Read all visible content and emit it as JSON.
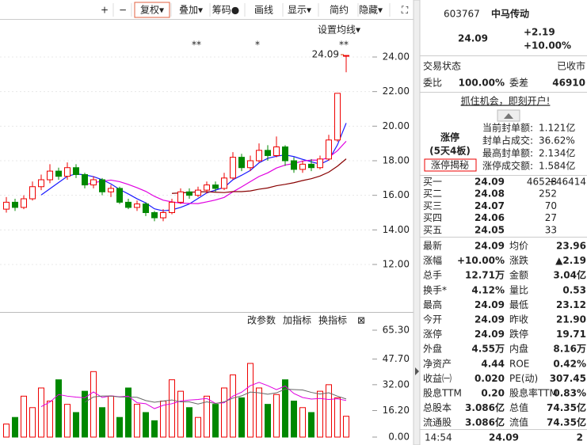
{
  "toolbar": [
    "+",
    "−",
    "复权▾",
    "叠加▾",
    "筹码●",
    "画线",
    "显示▾",
    "简约",
    "隐藏▾",
    "⛶"
  ],
  "chart": {
    "settings_label": "设置均线▾",
    "last_label": "24.09",
    "markers": [
      "**",
      "*",
      "**"
    ],
    "ylim": [
      12,
      24
    ],
    "yticks": [
      {
        "value": 24,
        "label": "24.00"
      },
      {
        "value": 22,
        "label": "22.00"
      },
      {
        "value": 20,
        "label": "20.00"
      },
      {
        "value": 18,
        "label": "18.00"
      },
      {
        "value": 16,
        "label": "16.00"
      },
      {
        "value": 14,
        "label": "14.00"
      },
      {
        "value": 12,
        "label": "12.00"
      }
    ],
    "candles": [
      [
        15.2,
        15.9,
        15.0,
        15.6
      ],
      [
        15.6,
        15.8,
        15.1,
        15.3
      ],
      [
        15.3,
        16.0,
        15.2,
        15.8
      ],
      [
        15.8,
        16.8,
        15.7,
        16.5
      ],
      [
        16.5,
        17.2,
        16.3,
        16.9
      ],
      [
        16.9,
        17.8,
        16.7,
        17.4
      ],
      [
        17.4,
        17.6,
        16.9,
        17.1
      ],
      [
        17.1,
        17.9,
        16.9,
        17.6
      ],
      [
        17.6,
        17.8,
        17.0,
        17.2
      ],
      [
        17.2,
        17.3,
        16.4,
        16.6
      ],
      [
        16.6,
        17.1,
        16.4,
        16.9
      ],
      [
        16.9,
        17.0,
        16.0,
        16.2
      ],
      [
        16.2,
        16.6,
        15.9,
        16.4
      ],
      [
        16.4,
        16.5,
        15.5,
        15.6
      ],
      [
        15.6,
        15.8,
        15.2,
        15.3
      ],
      [
        15.3,
        15.7,
        15.1,
        15.5
      ],
      [
        15.5,
        15.6,
        14.8,
        15.0
      ],
      [
        15.0,
        15.1,
        14.5,
        14.7
      ],
      [
        14.7,
        15.2,
        14.5,
        15.0
      ],
      [
        15.0,
        15.8,
        14.9,
        15.6
      ],
      [
        15.6,
        16.4,
        15.5,
        16.2
      ],
      [
        16.2,
        16.4,
        15.8,
        16.0
      ],
      [
        16.0,
        16.5,
        15.9,
        16.3
      ],
      [
        16.3,
        16.8,
        16.1,
        16.6
      ],
      [
        16.6,
        16.8,
        16.2,
        16.4
      ],
      [
        16.4,
        17.3,
        16.3,
        17.0
      ],
      [
        17.0,
        18.5,
        16.9,
        18.2
      ],
      [
        18.2,
        18.4,
        17.4,
        17.6
      ],
      [
        17.6,
        18.3,
        17.4,
        18.0
      ],
      [
        18.0,
        19.0,
        17.9,
        18.6
      ],
      [
        18.6,
        18.9,
        18.0,
        18.3
      ],
      [
        18.3,
        19.4,
        18.2,
        18.8
      ],
      [
        18.8,
        18.9,
        17.7,
        18.0
      ],
      [
        18.0,
        18.2,
        17.3,
        17.5
      ],
      [
        17.5,
        18.0,
        17.3,
        17.8
      ],
      [
        17.8,
        18.1,
        17.4,
        17.6
      ],
      [
        17.6,
        18.3,
        17.5,
        18.1
      ],
      [
        18.1,
        19.5,
        18.0,
        19.2
      ],
      [
        19.2,
        21.9,
        19.1,
        21.9
      ],
      [
        24.09,
        24.09,
        23.12,
        24.09
      ]
    ],
    "volume_header": [
      "改参数",
      "加指标",
      "换指标",
      "⊠"
    ],
    "vlim": [
      0,
      65.3
    ],
    "vticks": [
      {
        "value": 65.3,
        "label": "65.30"
      },
      {
        "value": 47.7,
        "label": "47.70"
      },
      {
        "value": 32,
        "label": "32.00"
      },
      {
        "value": 16.2,
        "label": "16.20"
      },
      {
        "value": 0,
        "label": "0.00"
      }
    ],
    "volumes": [
      8,
      12,
      25,
      18,
      30,
      22,
      35,
      20,
      15,
      28,
      40,
      18,
      25,
      12,
      30,
      20,
      15,
      10,
      22,
      35,
      28,
      18,
      12,
      25,
      20,
      30,
      38,
      24,
      45,
      30,
      20,
      26,
      35,
      22,
      18,
      15,
      28,
      32,
      24,
      12.71
    ]
  },
  "quote": {
    "code": "603767",
    "name": "中马传动",
    "price": "24.09",
    "change": "+2.19",
    "pct": "+10.00%",
    "status_label": "交易状态",
    "status": "已收市",
    "ratio_label": "委比",
    "ratio": "100.00%",
    "diff_label": "委差",
    "diff": "46910",
    "link": "抓住机会，即刻开户!",
    "limit": {
      "title": "涨停",
      "streak": "(5天4板)",
      "button": "涨停揭秘",
      "rows": [
        [
          "当前封单额:",
          "1.121亿"
        ],
        [
          "封单占成交:",
          "36.62%"
        ],
        [
          "最高封单额:",
          "2.134亿"
        ],
        [
          "涨停成交额:",
          "1.584亿"
        ]
      ]
    },
    "bids": [
      [
        "买一",
        "24.09",
        "46528",
        "+46414"
      ],
      [
        "买二",
        "24.08",
        "252"
      ],
      [
        "买三",
        "24.07",
        "70"
      ],
      [
        "买四",
        "24.06",
        "27"
      ],
      [
        "买五",
        "24.05",
        "33"
      ]
    ],
    "stats": [
      [
        [
          "最新",
          "24.09",
          "red"
        ],
        [
          "均价",
          "23.96",
          "black"
        ]
      ],
      [
        [
          "涨幅",
          "+10.00%",
          "red"
        ],
        [
          "涨跌",
          "▲2.19",
          "red"
        ]
      ],
      [
        [
          "总手",
          "12.71万",
          "black"
        ],
        [
          "金额",
          "3.04亿",
          "blue"
        ]
      ],
      [
        [
          "换手*",
          "4.12%",
          "black"
        ],
        [
          "量比",
          "0.53",
          "green"
        ]
      ],
      [
        [
          "最高",
          "24.09",
          "red"
        ],
        [
          "最低",
          "23.12",
          "red"
        ]
      ],
      [
        [
          "今开",
          "24.09",
          "red"
        ],
        [
          "昨收",
          "21.90",
          "black"
        ]
      ],
      [
        [
          "涨停",
          "24.09",
          "red"
        ],
        [
          "跌停",
          "19.71",
          "green"
        ]
      ],
      [
        [
          "外盘",
          "4.55万",
          "red"
        ],
        [
          "内盘",
          "8.16万",
          "green"
        ]
      ],
      [
        [
          "净资产",
          "4.44",
          "black"
        ],
        [
          "ROE",
          "0.42%",
          "black"
        ]
      ],
      [
        [
          "收益㈠",
          "0.020",
          "black"
        ],
        [
          "PE(动)",
          "307.45",
          "black"
        ]
      ],
      [
        [
          "股息TTM",
          "0.20",
          "black"
        ],
        [
          "股息率TTM",
          "0.83%",
          "black"
        ]
      ],
      [
        [
          "总股本",
          "3.086亿",
          "black"
        ],
        [
          "总值",
          "74.35亿",
          "black"
        ]
      ],
      [
        [
          "流通股",
          "3.086亿",
          "black"
        ],
        [
          "流值",
          "74.35亿",
          "black"
        ]
      ]
    ],
    "footer": [
      "14:54",
      "24.09",
      "2"
    ]
  }
}
